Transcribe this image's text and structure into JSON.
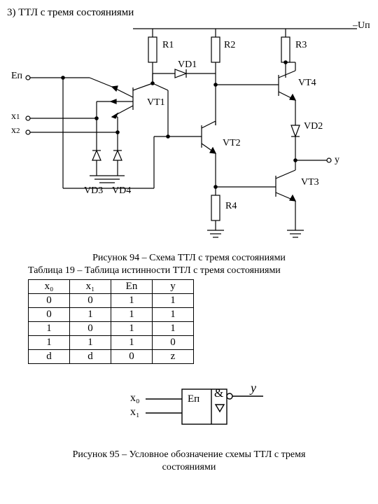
{
  "title": "3) ТТЛ с тремя состояниями",
  "supply": "–Uп",
  "labels": {
    "R1": "R1",
    "R2": "R2",
    "R3": "R3",
    "R4": "R4",
    "VD1": "VD1",
    "VD2": "VD2",
    "VD3": "VD3",
    "VD4": "VD4",
    "VT1": "VT1",
    "VT2": "VT2",
    "VT3": "VT3",
    "VT4": "VT4",
    "En": "Eп",
    "x1": "x",
    "x1s": "1",
    "x2": "x",
    "x2s": "2",
    "y": "y"
  },
  "caption94": "Рисунок 94 – Схема ТТЛ с тремя состояниями",
  "caption_table": "Таблица 19 – Таблица истинности ТТЛ с тремя состояниями",
  "truth_table": {
    "headers": [
      "x₀",
      "x₁",
      "En",
      "y"
    ],
    "rows": [
      [
        "0",
        "0",
        "1",
        "1"
      ],
      [
        "0",
        "1",
        "1",
        "1"
      ],
      [
        "1",
        "0",
        "1",
        "1"
      ],
      [
        "1",
        "1",
        "1",
        "0"
      ],
      [
        "d",
        "d",
        "0",
        "z"
      ]
    ]
  },
  "symbol": {
    "x0": "x₀",
    "x1": "x₁",
    "en": "Eп",
    "amp": "&",
    "y": "y"
  },
  "caption95": "Рисунок 95 – Условное обозначение схемы ТТЛ с тремя",
  "caption95b": "состояниями",
  "stroke": "#000000",
  "bg": "#ffffff"
}
